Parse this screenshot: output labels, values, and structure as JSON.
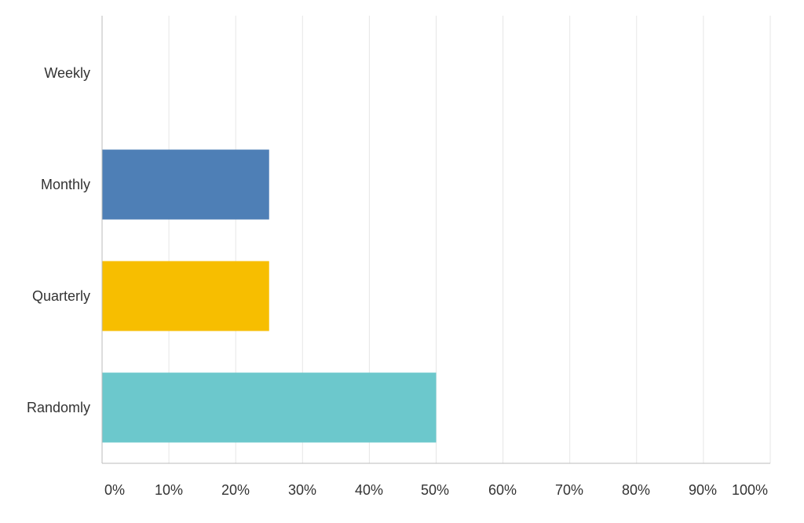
{
  "chart_data": {
    "type": "bar",
    "orientation": "horizontal",
    "categories": [
      "Weekly",
      "Monthly",
      "Quarterly",
      "Randomly"
    ],
    "values": [
      0,
      25,
      25,
      50
    ],
    "unit": "%",
    "xlim": [
      0,
      100
    ],
    "x_ticks": [
      "0%",
      "10%",
      "20%",
      "30%",
      "40%",
      "50%",
      "60%",
      "70%",
      "80%",
      "90%",
      "100%"
    ],
    "bar_colors": [
      "#4e7fb6",
      "#4e7fb6",
      "#f7be00",
      "#6cc8cc"
    ],
    "grid": true,
    "grid_color": "#e6e6e6",
    "axis_color": "#bbbbbb"
  }
}
